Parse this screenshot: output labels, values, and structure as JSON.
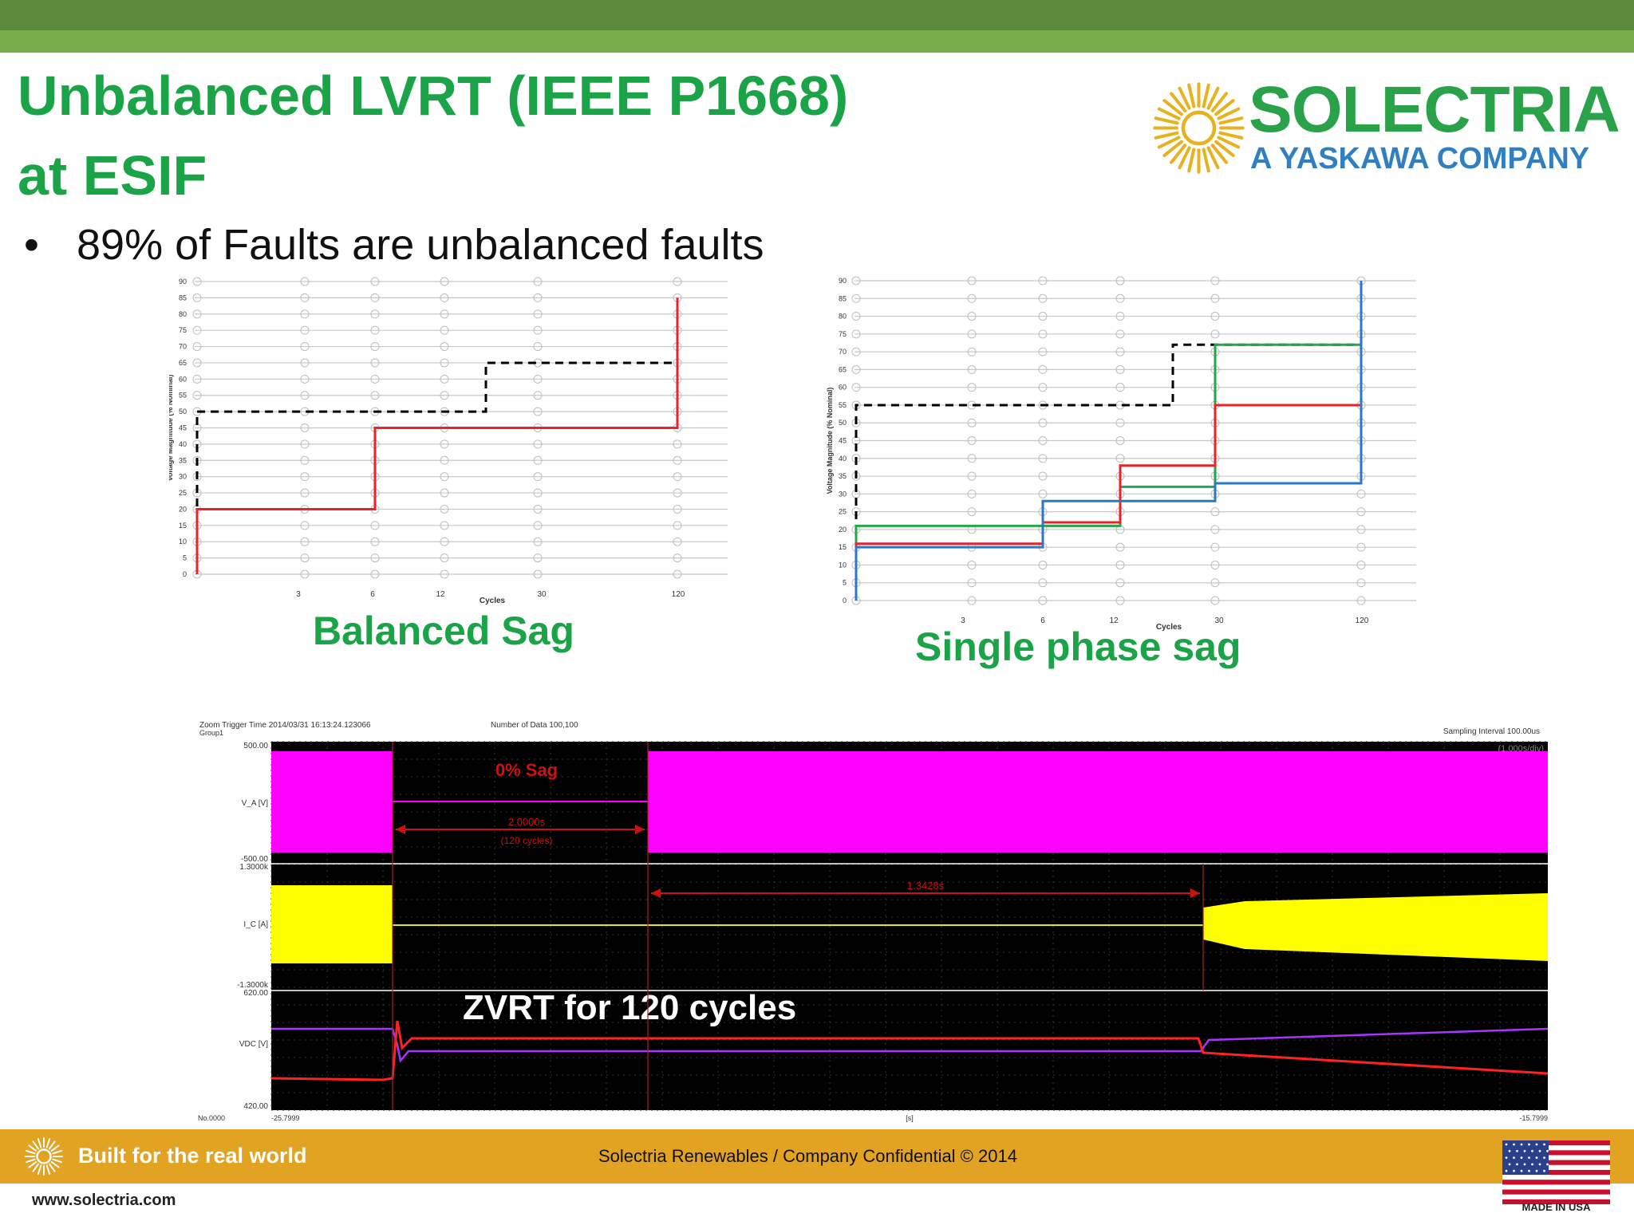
{
  "header": {
    "title_line1": "Unbalanced LVRT (IEEE P1668)",
    "title_line2": "at ESIF"
  },
  "logo": {
    "brand": "SOLECTRIA",
    "sub": "A YASKAWA COMPANY",
    "icon": "sun-icon"
  },
  "bullets": [
    "89% of Faults are unbalanced faults"
  ],
  "colors": {
    "title_green": "#1aa447",
    "bar_dark": "#5b8a3a",
    "bar_light": "#79ad4b",
    "footer": "#e3a322",
    "logo_blue": "#2f7fc1",
    "sun_yellow": "#e8b21f",
    "series_red": "#e8232b",
    "series_green": "#22a84a",
    "series_blue": "#2b79c2",
    "dashed_black": "#000000",
    "scope_magenta": "#ff00ff",
    "scope_yellow": "#ffff00"
  },
  "chart_data": [
    {
      "type": "line",
      "caption": "Balanced Sag",
      "xlabel": "Cycles",
      "ylabel": "Voltage Magnitude (% Nominal)",
      "x_ticks": [
        "3",
        "6",
        "12",
        "30",
        "120"
      ],
      "y_ticks": [
        0,
        5,
        10,
        15,
        20,
        25,
        30,
        35,
        40,
        45,
        50,
        55,
        60,
        65,
        70,
        75,
        80,
        85,
        90
      ],
      "ylim": [
        0,
        90
      ],
      "step": true,
      "series": [
        {
          "style": "dashed",
          "color": "#000000",
          "x": [
            0,
            0,
            20,
            20,
            120,
            120
          ],
          "y": [
            0,
            50,
            50,
            65,
            65,
            85
          ]
        },
        {
          "style": "solid",
          "color": "#e8232b",
          "x": [
            0,
            0,
            6,
            6,
            120,
            120
          ],
          "y": [
            0,
            20,
            20,
            45,
            45,
            85
          ]
        }
      ]
    },
    {
      "type": "line",
      "caption": "Single phase sag",
      "xlabel": "Cycles",
      "ylabel": "Voltage Magnitude (% Nominal)",
      "x_ticks": [
        "3",
        "6",
        "12",
        "30",
        "120"
      ],
      "y_ticks": [
        0,
        5,
        10,
        15,
        20,
        25,
        30,
        35,
        40,
        45,
        50,
        55,
        60,
        65,
        70,
        75,
        80,
        85,
        90
      ],
      "ylim": [
        0,
        90
      ],
      "step": true,
      "series": [
        {
          "style": "dashed",
          "color": "#000000",
          "x": [
            0,
            0,
            20,
            20,
            120,
            120
          ],
          "y": [
            0,
            55,
            55,
            72,
            72,
            95
          ]
        },
        {
          "style": "solid",
          "color": "#22a84a",
          "x": [
            0,
            0,
            12,
            12,
            30,
            30,
            120,
            120
          ],
          "y": [
            0,
            21,
            21,
            32,
            32,
            72,
            72,
            95
          ]
        },
        {
          "style": "solid",
          "color": "#e8232b",
          "x": [
            0,
            0,
            6,
            6,
            12,
            12,
            30,
            30,
            120,
            120
          ],
          "y": [
            0,
            16,
            16,
            22,
            22,
            38,
            38,
            55,
            55,
            95
          ]
        },
        {
          "style": "solid",
          "color": "#2b79c2",
          "x": [
            0,
            0,
            6,
            6,
            12,
            12,
            30,
            30,
            120,
            120
          ],
          "y": [
            0,
            15,
            15,
            28,
            28,
            28,
            28,
            33,
            33,
            95
          ]
        }
      ]
    }
  ],
  "scope": {
    "header_left": "Zoom Trigger Time  2014/03/31   16:13:24.123066",
    "header_group": "Group1",
    "header_mid": "Number of Data  100,100",
    "header_right": "Sampling Interval  100.00us",
    "timebase": "(1.000s/div)",
    "sag_label": "0% Sag",
    "duration1": "2.0000s",
    "duration1_sub": "(120 cycles)",
    "duration2": "1.3428s",
    "zvrt_label": "ZVRT for 120 cycles",
    "ch1_name": "V_A",
    "ch1_unit": "[V]",
    "ch1_top": "500.00",
    "ch1_bottom": "-500.00",
    "ch2_name": "I_C",
    "ch2_unit": "[A]",
    "ch2_top": "1.3000k",
    "ch2_bottom": "-1.3000k",
    "ch3_name": "VDC",
    "ch3_unit": "[V]",
    "ch3_top": "620.00",
    "ch3_bottom": "420.00",
    "x_start": "-25.7999",
    "x_unit": "[s]",
    "x_end": "-15.7999",
    "x_origin": "No.0000"
  },
  "footer": {
    "tagline": "Built for the real world",
    "confidential": "Solectria Renewables / Company Confidential © 2014",
    "url": "www.solectria.com",
    "made": "MADE IN USA"
  }
}
